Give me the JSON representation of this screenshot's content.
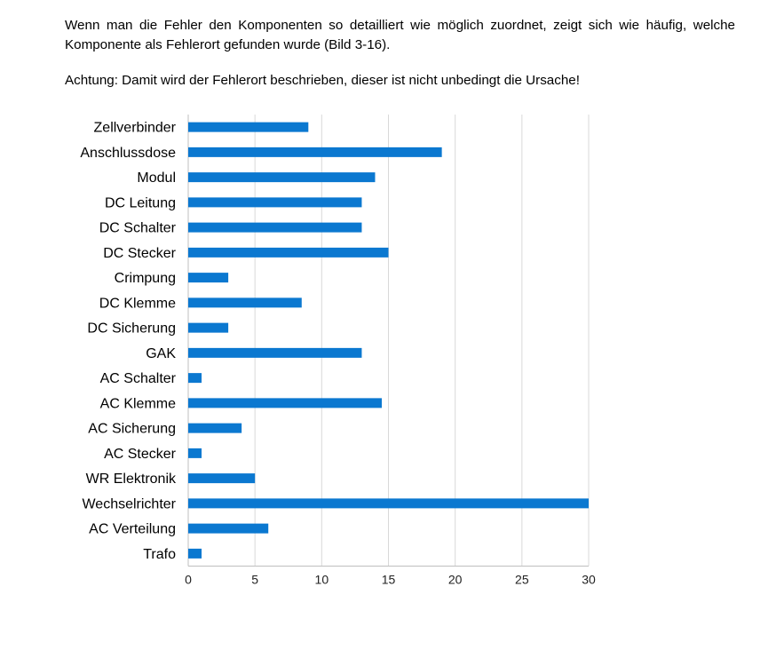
{
  "text": {
    "intro": "Wenn man die Fehler den Komponenten so detailliert wie möglich zuordnet, zeigt sich wie häufig, welche Komponente als Fehlerort gefunden wurde (Bild 3-16).",
    "note": "Achtung: Damit wird der Fehlerort beschrieben, dieser ist nicht unbedingt die Ursache!"
  },
  "chart_data": {
    "type": "bar",
    "orientation": "horizontal",
    "categories": [
      "Zellverbinder",
      "Anschlussdose",
      "Modul",
      "DC Leitung",
      "DC Schalter",
      "DC Stecker",
      "Crimpung",
      "DC Klemme",
      "DC Sicherung",
      "GAK",
      "AC Schalter",
      "AC Klemme",
      "AC Sicherung",
      "AC Stecker",
      "WR Elektronik",
      "Wechselrichter",
      "AC Verteilung",
      "Trafo"
    ],
    "values": [
      9,
      19,
      14,
      13,
      13,
      15,
      3,
      8.5,
      3,
      13,
      1,
      14.5,
      4,
      1,
      5,
      30,
      6,
      1
    ],
    "xlim": [
      0,
      30
    ],
    "xticks": [
      0,
      5,
      10,
      15,
      20,
      25,
      30
    ],
    "title": "",
    "xlabel": "",
    "ylabel": "",
    "grid": true,
    "bar_color": "#0b78d0",
    "grid_color": "#d9d9d9"
  }
}
